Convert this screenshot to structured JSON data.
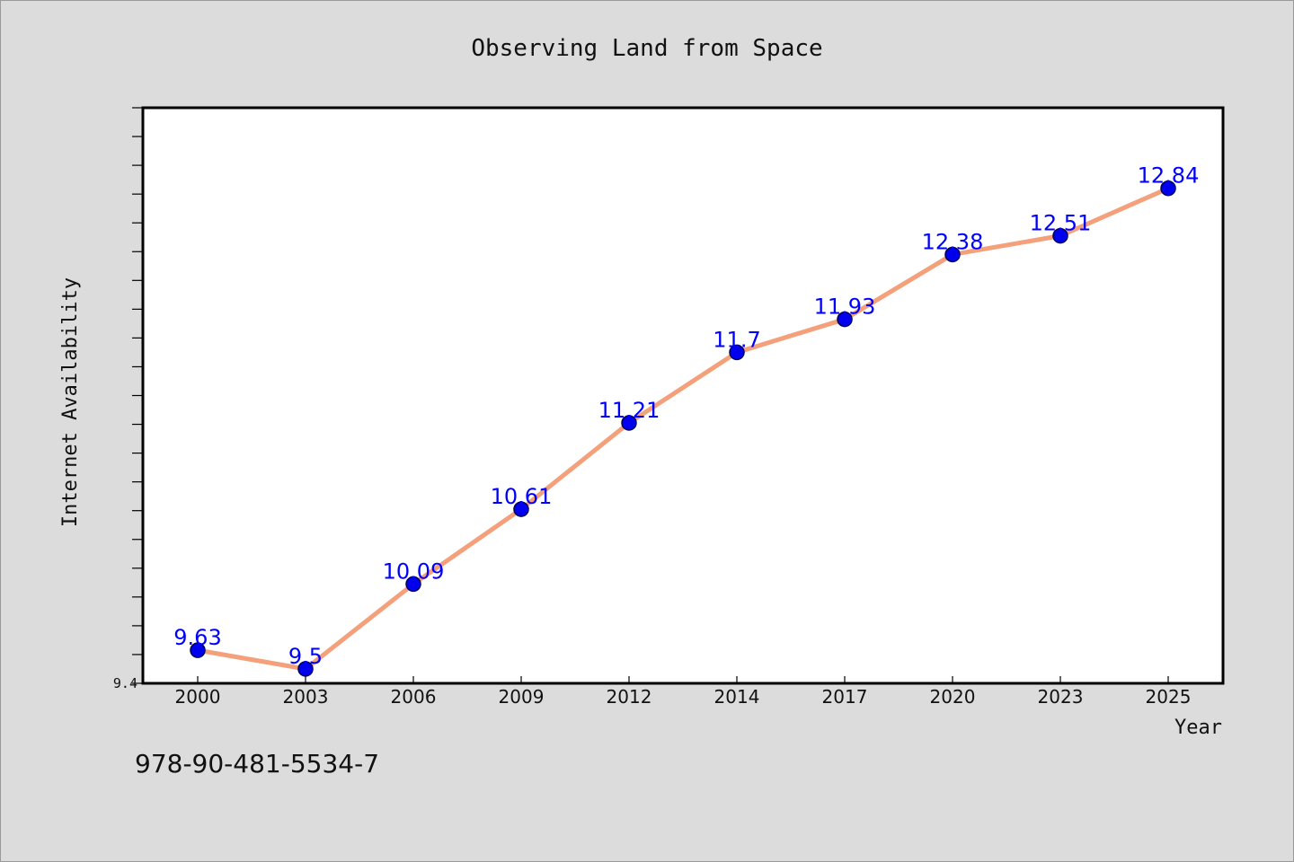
{
  "chart_data": {
    "type": "line",
    "title": "Observing Land from Space",
    "xlabel": "Year",
    "ylabel": "Internet Availability",
    "categories": [
      "2000",
      "2003",
      "2006",
      "2009",
      "2012",
      "2014",
      "2017",
      "2020",
      "2023",
      "2025"
    ],
    "values": [
      9.63,
      9.5,
      10.09,
      10.61,
      11.21,
      11.7,
      11.93,
      12.38,
      12.51,
      12.84
    ],
    "value_labels": [
      "9.63",
      "9.5",
      "10.09",
      "10.61",
      "11.21",
      "11.7",
      "11.93",
      "12.38",
      "12.51",
      "12.84"
    ],
    "ylim": [
      9.4,
      13.4
    ],
    "y_tick_labels": [
      "9.4"
    ],
    "grid": false,
    "line_color": "#f4a07a",
    "marker_color": "#0000ee",
    "label_color": "#0000ff"
  },
  "footer": {
    "code": "978-90-481-5534-7"
  }
}
